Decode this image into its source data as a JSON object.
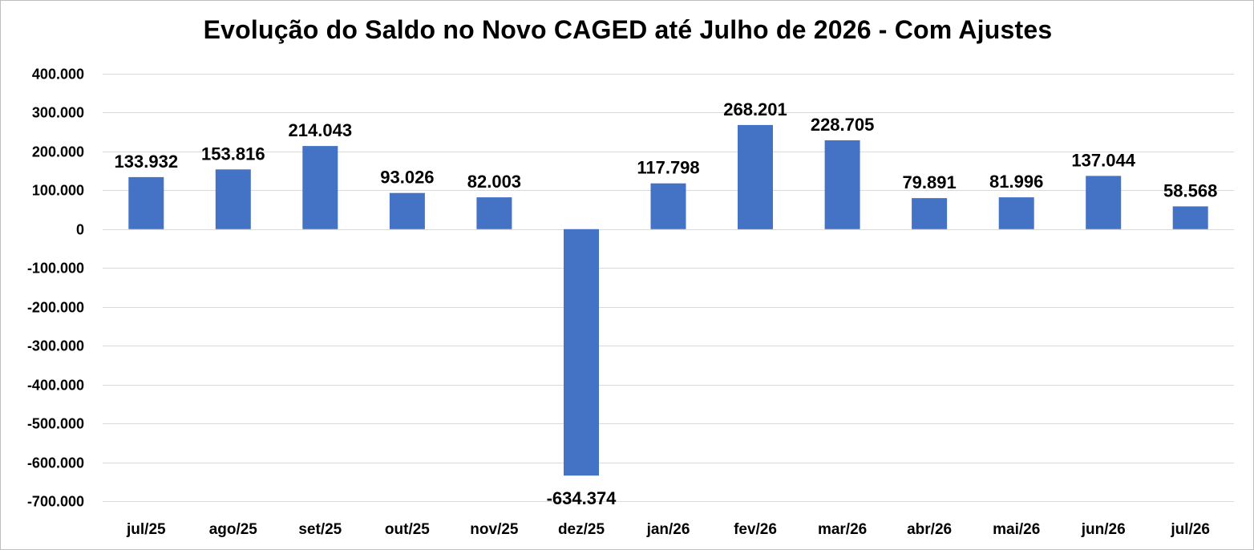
{
  "chart_data": {
    "type": "bar",
    "title": "Evolução do Saldo no Novo CAGED até Julho de 2026 - Com Ajustes",
    "xlabel": "",
    "ylabel": "",
    "categories": [
      "jul/25",
      "ago/25",
      "set/25",
      "out/25",
      "nov/25",
      "dez/25",
      "jan/26",
      "fev/26",
      "mar/26",
      "abr/26",
      "mai/26",
      "jun/26",
      "jul/26"
    ],
    "values": [
      133932,
      153816,
      214043,
      93026,
      82003,
      -634374,
      117798,
      268201,
      228705,
      79891,
      81996,
      137044,
      58568
    ],
    "data_labels": [
      "133.932",
      "153.816",
      "214.043",
      "93.026",
      "82.003",
      "-634.374",
      "117.798",
      "268.201",
      "228.705",
      "79.891",
      "81.996",
      "137.044",
      "58.568"
    ],
    "ylim": [
      -700000,
      400000
    ],
    "yticks": [
      400000,
      300000,
      200000,
      100000,
      0,
      -100000,
      -200000,
      -300000,
      -400000,
      -500000,
      -600000,
      -700000
    ],
    "ytick_labels": [
      "400.000",
      "300.000",
      "200.000",
      "100.000",
      "0",
      "-100.000",
      "-200.000",
      "-300.000",
      "-400.000",
      "-500.000",
      "-600.000",
      "-700.000"
    ],
    "grid": true,
    "legend": "none",
    "bar_color": "#4472C4"
  }
}
